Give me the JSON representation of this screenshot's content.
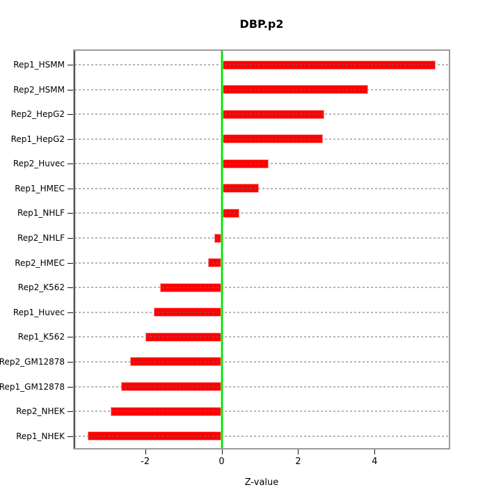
{
  "title": "DBP.p2",
  "chart_data": {
    "type": "bar",
    "orientation": "horizontal",
    "title": "DBP.p2",
    "xlabel": "Z-value",
    "categories": [
      "Rep1_HSMM",
      "Rep2_HSMM",
      "Rep2_HepG2",
      "Rep1_HepG2",
      "Rep2_Huvec",
      "Rep1_HMEC",
      "Rep1_NHLF",
      "Rep2_NHLF",
      "Rep2_HMEC",
      "Rep2_K562",
      "Rep1_Huvec",
      "Rep1_K562",
      "Rep2_GM12878",
      "Rep1_GM12878",
      "Rep2_NHEK",
      "Rep1_NHEK"
    ],
    "values": [
      5.6,
      3.83,
      2.68,
      2.64,
      1.23,
      0.98,
      0.46,
      -0.19,
      -0.36,
      -1.61,
      -1.78,
      -2.0,
      -2.4,
      -2.63,
      -2.91,
      -3.51
    ],
    "x_ticks": [
      -2,
      0,
      2,
      4
    ],
    "xlim": [
      -3.85,
      5.94
    ],
    "grid": "dotted-horizontal-per-category",
    "legend": "none",
    "colors": {
      "bar_fill": "#ff0000",
      "bar_edge": "#ff9a9a",
      "zero_line": "#00dd00",
      "plot_border": "#9a9a9a",
      "axis": "#111111",
      "gridline": "#b9b9b9",
      "background": "#ffffff"
    }
  }
}
